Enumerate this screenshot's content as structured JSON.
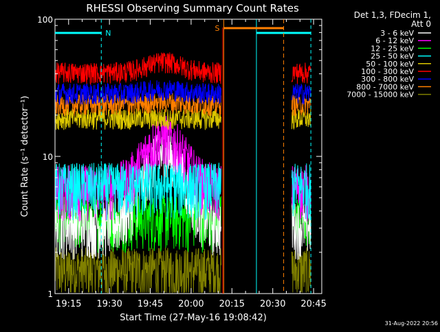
{
  "chart_data": {
    "type": "line",
    "title": "RHESSI Observing Summary Count Rates",
    "xlabel": "Start Time (27-May-16 19:08:42)",
    "ylabel": "Count Rate (s⁻¹ detector⁻¹)",
    "y_scale": "log",
    "ylim": [
      1,
      100
    ],
    "xlim_minutes_after_1910": [
      0,
      98
    ],
    "x_ticks": [
      "19:15",
      "19:30",
      "19:45",
      "20:00",
      "20:15",
      "20:30",
      "20:45"
    ],
    "y_ticks": [
      "1",
      "10",
      "100"
    ],
    "grid": false,
    "legend_position": "right",
    "legend_header": [
      "Det 1,3, FDecim 1,",
      "Att 0"
    ],
    "series": [
      {
        "name": "3 - 6 keV",
        "color": "#ffffff",
        "base": 3.2,
        "flare_peak": 10.5
      },
      {
        "name": "6 - 12 keV",
        "color": "#ff00ff",
        "base": 6.0,
        "flare_peak": 14.0
      },
      {
        "name": "12 - 25 keV",
        "color": "#00ff00",
        "base": 3.6,
        "flare_peak": 3.6
      },
      {
        "name": "25 - 50 keV",
        "color": "#00ffff",
        "base": 6.2,
        "flare_peak": 6.2
      },
      {
        "name": "50 - 100 keV",
        "color": "#ddc800",
        "base": 19.0,
        "flare_peak": 19.0
      },
      {
        "name": "100 - 300 keV",
        "color": "#ff0000",
        "base": 41.0,
        "flare_peak": 49.0
      },
      {
        "name": "300 - 800 keV",
        "color": "#0000ff",
        "base": 29.0,
        "flare_peak": 31.0
      },
      {
        "name": "800 - 7000 keV",
        "color": "#ff7f00",
        "base": 24.0,
        "flare_peak": 25.0
      },
      {
        "name": "7000 - 15000 keV",
        "color": "#808000",
        "base": 1.5,
        "flare_peak": 1.5
      }
    ],
    "data_intervals_minutes": [
      [
        0,
        61
      ],
      [
        87,
        94
      ]
    ],
    "markers": {
      "N": {
        "label": "N",
        "color": "#00ffff",
        "start": 0,
        "end": 17,
        "next_start": 74,
        "next_end": 94
      },
      "S": {
        "label": "S",
        "color": "#ff7f00",
        "start": 62,
        "end": 84
      }
    },
    "date_stamp": "31-Aug-2022 20:56"
  }
}
